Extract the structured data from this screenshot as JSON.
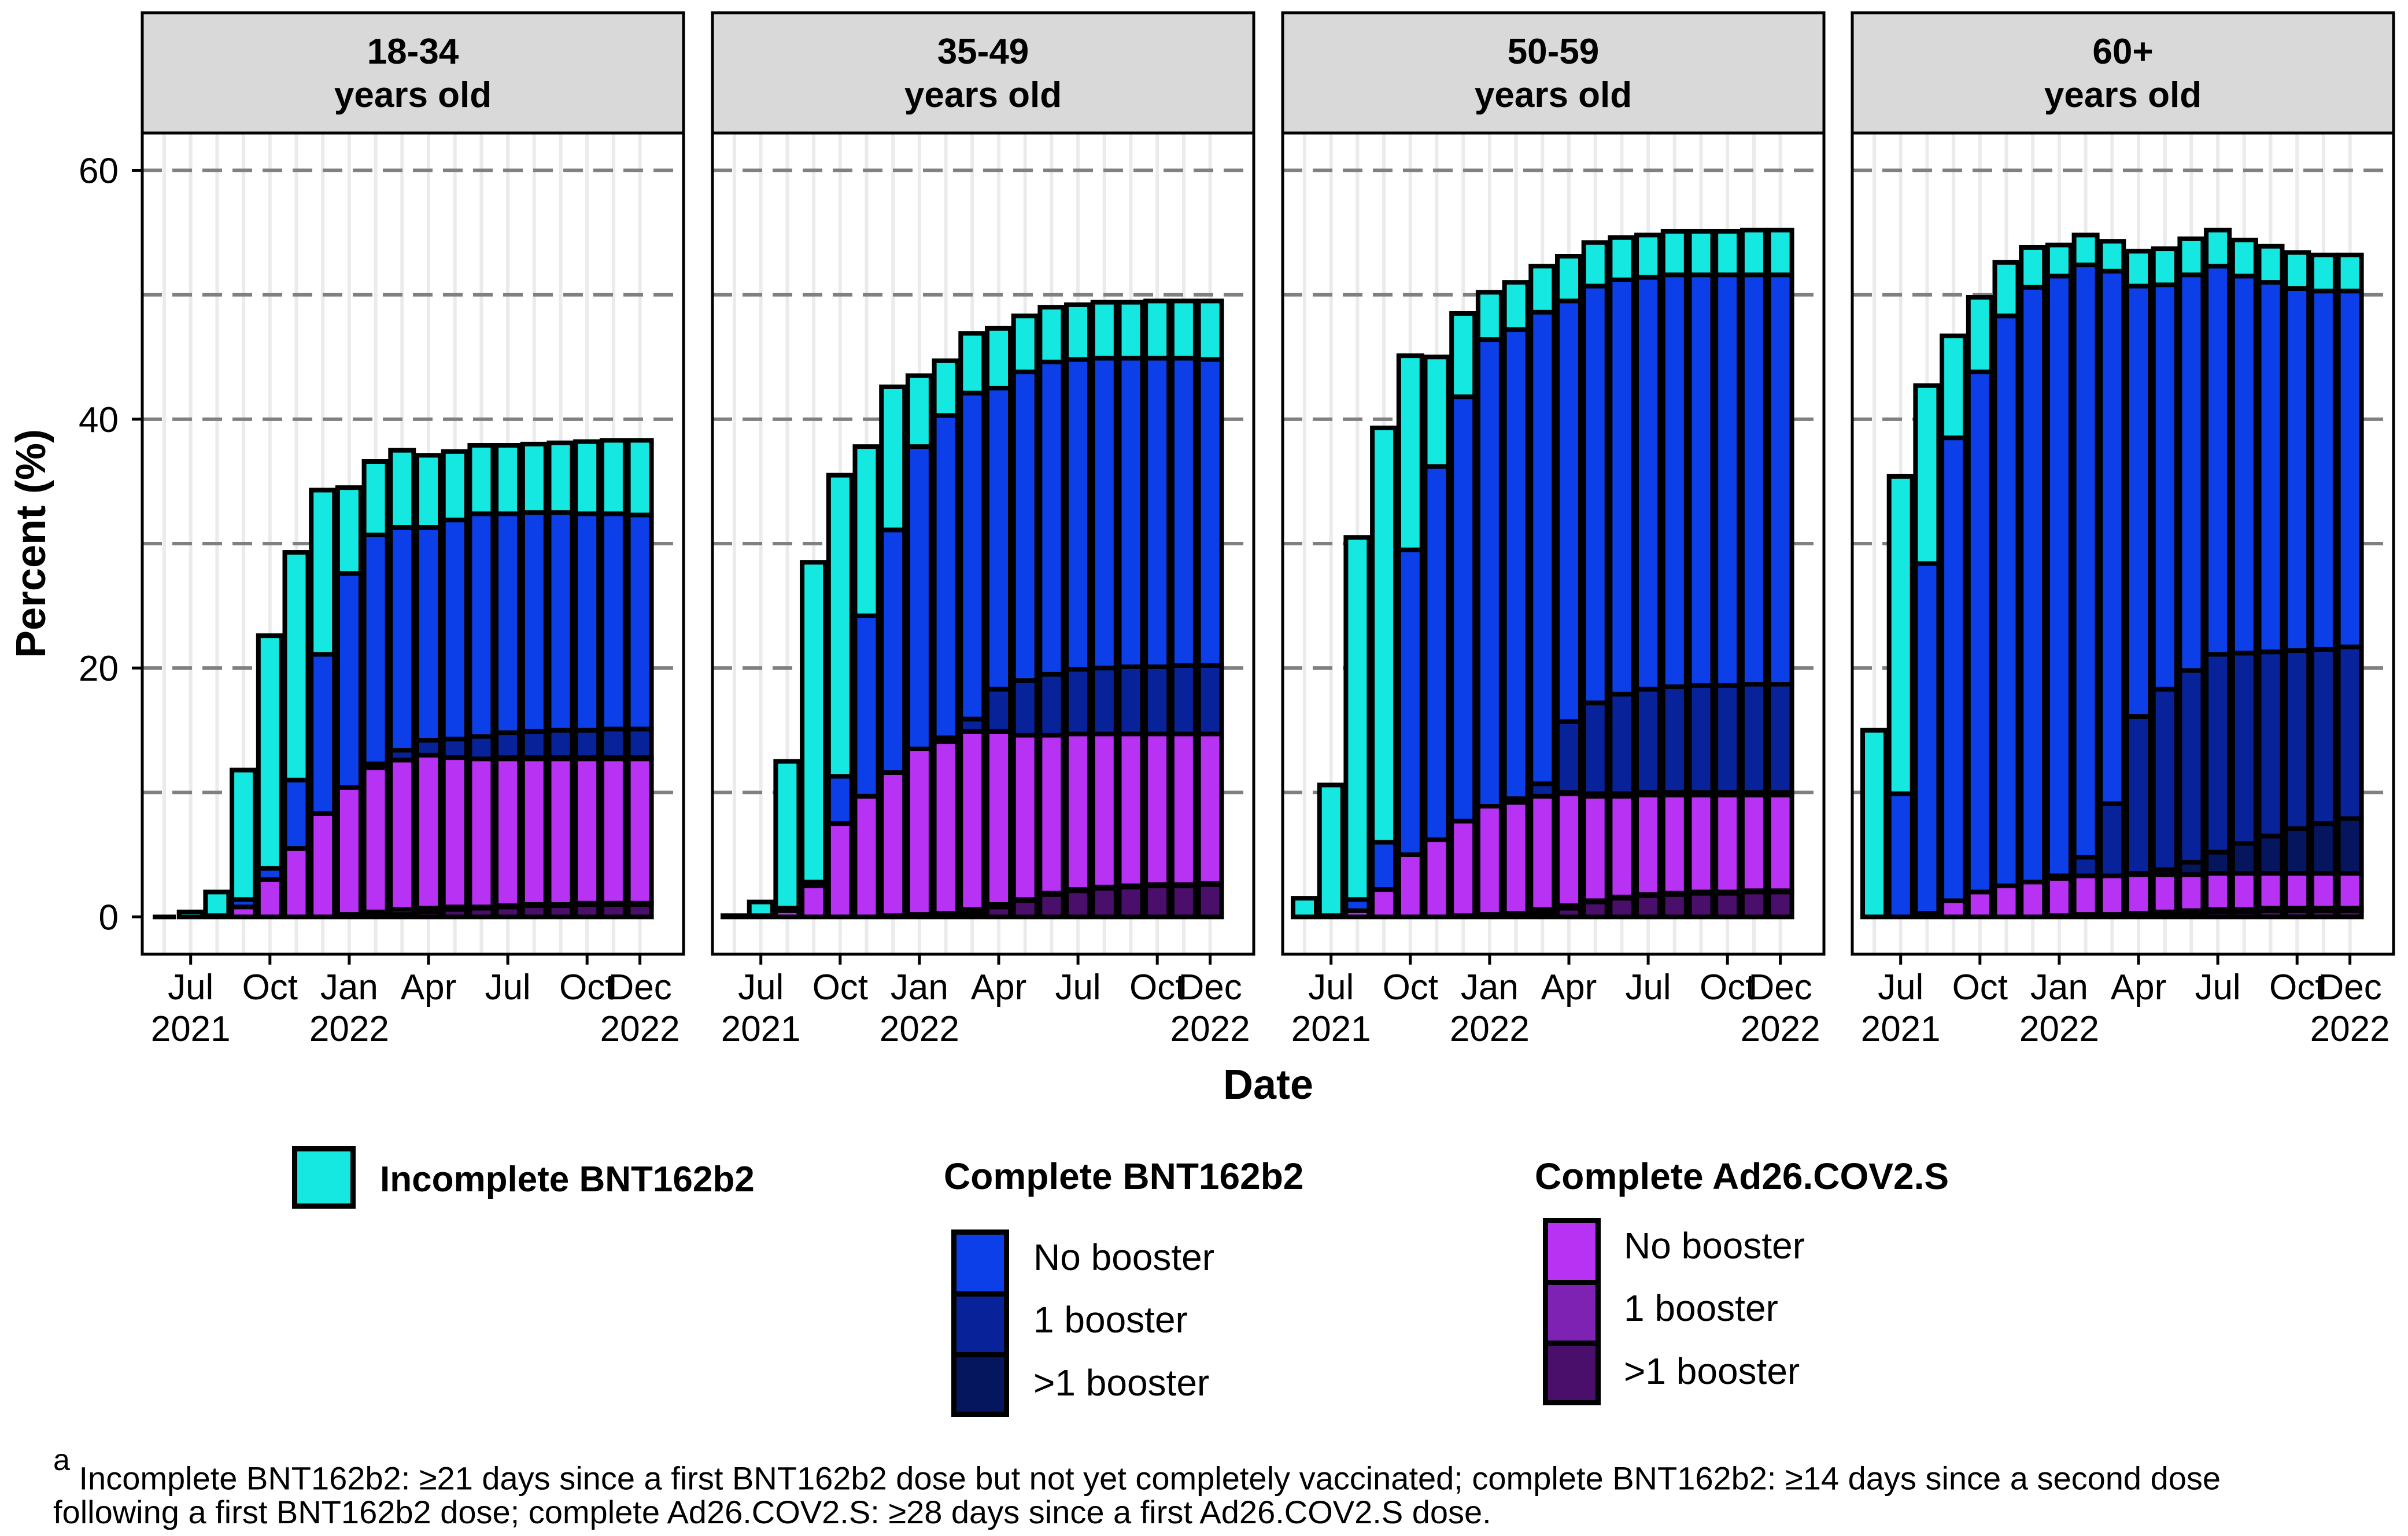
{
  "chart_data": {
    "type": "bar",
    "stacked": true,
    "facet_by": "age group",
    "panels": [
      {
        "line1": "18-34",
        "line2": "years old"
      },
      {
        "line1": "35-49",
        "line2": "years old"
      },
      {
        "line1": "50-59",
        "line2": "years old"
      },
      {
        "line1": "60+",
        "line2": "years old"
      }
    ],
    "ylabel": "Percent (%)",
    "xlabel": "Date",
    "ylim": [
      -3,
      63
    ],
    "yticks": [
      0,
      20,
      40,
      60
    ],
    "gridlines": [
      10,
      20,
      30,
      40,
      50,
      60
    ],
    "months": [
      "2021-06",
      "2021-07",
      "2021-08",
      "2021-09",
      "2021-10",
      "2021-11",
      "2021-12",
      "2022-01",
      "2022-02",
      "2022-03",
      "2022-04",
      "2022-05",
      "2022-06",
      "2022-07",
      "2022-08",
      "2022-09",
      "2022-10",
      "2022-11",
      "2022-12"
    ],
    "xticks": [
      {
        "idx": 1,
        "line1": "Jul",
        "line2": "2021"
      },
      {
        "idx": 4,
        "line1": "Oct",
        "line2": ""
      },
      {
        "idx": 7,
        "line1": "Jan",
        "line2": "2022"
      },
      {
        "idx": 10,
        "line1": "Apr",
        "line2": ""
      },
      {
        "idx": 13,
        "line1": "Jul",
        "line2": ""
      },
      {
        "idx": 16,
        "line1": "Oct",
        "line2": ""
      },
      {
        "idx": 18,
        "line1": "Dec",
        "line2": "2022"
      }
    ],
    "series": [
      {
        "name": "Complete Ad26.COV2.S >1 booster",
        "values": [
          [
            0,
            0,
            0,
            0,
            0,
            0,
            0,
            0,
            0.1,
            0.2,
            0.4,
            0.6,
            0.7,
            0.8,
            0.9,
            0.9,
            1.0,
            1.0,
            1.0
          ],
          [
            0,
            0,
            0,
            0,
            0,
            0,
            0,
            0,
            0,
            0.3,
            0.8,
            1.3,
            1.8,
            2.1,
            2.3,
            2.4,
            2.5,
            2.5,
            2.6
          ],
          [
            0,
            0,
            0,
            0,
            0,
            0,
            0,
            0,
            0,
            0.3,
            0.7,
            1.2,
            1.5,
            1.7,
            1.8,
            1.9,
            1.9,
            2.0,
            2.0
          ],
          [
            0,
            0,
            0,
            0,
            0,
            0,
            0,
            0,
            0,
            0,
            0.1,
            0.2,
            0.3,
            0.4,
            0.4,
            0.5,
            0.5,
            0.5,
            0.5
          ]
        ]
      },
      {
        "name": "Complete Ad26.COV2.S 1 booster",
        "values": [
          [
            0,
            0,
            0,
            0,
            0,
            0,
            0,
            0.2,
            0.3,
            0.4,
            0.3,
            0.2,
            0.1,
            0.1,
            0.1,
            0.1,
            0.1,
            0.1,
            0.1
          ],
          [
            0,
            0,
            0,
            0,
            0,
            0,
            0.1,
            0.2,
            0.3,
            0.3,
            0.2,
            0.1,
            0.1,
            0.1,
            0.1,
            0.1,
            0.1,
            0.1,
            0.1
          ],
          [
            0,
            0,
            0,
            0,
            0,
            0,
            0.1,
            0.2,
            0.3,
            0.3,
            0.2,
            0.1,
            0.1,
            0.1,
            0.1,
            0.1,
            0.1,
            0.1,
            0.1
          ],
          [
            0,
            0,
            0,
            0,
            0,
            0,
            0,
            0.1,
            0.2,
            0.2,
            0.2,
            0.2,
            0.2,
            0.2,
            0.2,
            0.2,
            0.2,
            0.2,
            0.2
          ]
        ]
      },
      {
        "name": "Complete Ad26.COV2.S No booster",
        "values": [
          [
            0,
            0,
            0.1,
            0.8,
            3.0,
            5.5,
            8.3,
            10.2,
            11.6,
            12.0,
            12.3,
            12.0,
            11.9,
            11.8,
            11.7,
            11.7,
            11.6,
            11.6,
            11.6
          ],
          [
            0,
            0.1,
            0.5,
            2.5,
            7.5,
            9.7,
            11.5,
            13.3,
            13.8,
            14.3,
            13.9,
            13.2,
            12.7,
            12.5,
            12.3,
            12.2,
            12.1,
            12.1,
            12.0
          ],
          [
            0,
            0.1,
            0.5,
            2.2,
            5.0,
            6.2,
            7.6,
            8.7,
            8.9,
            9.1,
            9.0,
            8.4,
            8.1,
            8.0,
            7.9,
            7.8,
            7.8,
            7.7,
            7.7
          ],
          [
            0,
            0,
            0.3,
            1.3,
            2.0,
            2.5,
            2.8,
            3.0,
            3.1,
            3.1,
            3.1,
            3.0,
            2.9,
            2.9,
            2.9,
            2.8,
            2.8,
            2.8,
            2.8
          ]
        ]
      },
      {
        "name": "Complete BNT162b2 >1 booster",
        "values": [
          [
            0,
            0,
            0,
            0,
            0,
            0,
            0,
            0,
            0,
            0,
            0,
            0,
            0,
            0.1,
            0.1,
            0.1,
            0.1,
            0.1,
            0.1
          ],
          [
            0,
            0,
            0,
            0,
            0,
            0,
            0,
            0,
            0,
            0,
            0,
            0,
            0,
            0,
            0,
            0,
            0,
            0,
            0
          ],
          [
            0,
            0,
            0,
            0,
            0,
            0,
            0,
            0,
            0,
            0,
            0.1,
            0.2,
            0.2,
            0.2,
            0.2,
            0.2,
            0.2,
            0.2,
            0.2
          ],
          [
            0,
            0,
            0,
            0,
            0,
            0,
            0,
            0,
            0,
            0,
            0.1,
            0.4,
            1.0,
            1.7,
            2.4,
            3.0,
            3.6,
            4.0,
            4.4
          ]
        ]
      },
      {
        "name": "Complete BNT162b2 1 booster",
        "values": [
          [
            0,
            0,
            0,
            0,
            0,
            0,
            0,
            0,
            0.3,
            0.8,
            1.2,
            1.5,
            1.8,
            2.0,
            2.1,
            2.2,
            2.2,
            2.3,
            2.3
          ],
          [
            0,
            0,
            0,
            0,
            0,
            0,
            0,
            0,
            0.3,
            1.0,
            3.4,
            4.4,
            4.9,
            5.2,
            5.3,
            5.4,
            5.4,
            5.5,
            5.5
          ],
          [
            0,
            0,
            0,
            0,
            0,
            0,
            0,
            0,
            0.3,
            1.0,
            5.7,
            7.3,
            8.0,
            8.3,
            8.5,
            8.6,
            8.6,
            8.7,
            8.7
          ],
          [
            0,
            0,
            0,
            0,
            0,
            0,
            0,
            0.2,
            1.5,
            5.8,
            12.6,
            14.5,
            15.4,
            15.9,
            15.3,
            14.8,
            14.3,
            14.0,
            13.8
          ]
        ]
      },
      {
        "name": "Complete BNT162b2 No booster",
        "values": [
          [
            0,
            0,
            0,
            0.6,
            0.9,
            5.5,
            12.8,
            17.2,
            18.4,
            17.9,
            17.1,
            17.6,
            17.9,
            17.6,
            17.6,
            17.5,
            17.4,
            17.3,
            17.2
          ],
          [
            0,
            0,
            0.2,
            0.3,
            3.8,
            14.5,
            19.5,
            24.3,
            25.9,
            26.2,
            24.2,
            24.8,
            25.1,
            24.9,
            24.9,
            24.8,
            24.8,
            24.7,
            24.6
          ],
          [
            0,
            0,
            0.9,
            3.8,
            24.5,
            30.0,
            34.1,
            37.5,
            37.7,
            37.9,
            33.8,
            33.5,
            33.3,
            33.1,
            33.1,
            33.0,
            33.0,
            32.9,
            32.9
          ],
          [
            0,
            9.9,
            28.1,
            37.2,
            41.8,
            45.8,
            47.8,
            48.2,
            47.6,
            42.8,
            34.6,
            32.5,
            31.8,
            31.2,
            30.3,
            29.7,
            29.1,
            28.8,
            28.6
          ]
        ]
      },
      {
        "name": "Incomplete BNT162b2",
        "values": [
          [
            0,
            0.4,
            1.9,
            10.4,
            18.7,
            18.3,
            13.2,
            6.9,
            5.9,
            6.2,
            5.8,
            5.5,
            5.5,
            5.5,
            5.5,
            5.6,
            5.8,
            5.9,
            6.0
          ],
          [
            0.1,
            1.1,
            11.8,
            25.7,
            24.2,
            13.6,
            11.5,
            5.7,
            4.4,
            4.8,
            4.8,
            4.5,
            4.4,
            4.4,
            4.5,
            4.5,
            4.6,
            4.6,
            4.7
          ],
          [
            1.5,
            10.5,
            29.1,
            33.3,
            15.6,
            8.8,
            6.7,
            3.8,
            3.8,
            3.7,
            3.6,
            3.5,
            3.4,
            3.4,
            3.5,
            3.5,
            3.5,
            3.6,
            3.6
          ],
          [
            15.0,
            25.5,
            14.3,
            8.2,
            6.0,
            4.3,
            3.2,
            2.5,
            2.4,
            2.4,
            2.8,
            2.9,
            2.9,
            2.9,
            2.9,
            2.9,
            2.9,
            2.9,
            2.9
          ]
        ]
      }
    ],
    "colors": {
      "Incomplete BNT162b2": "#15e8e0",
      "Complete BNT162b2 No booster": "#0c3fe8",
      "Complete BNT162b2 1 booster": "#08239a",
      "Complete BNT162b2 >1 booster": "#05155e",
      "Complete Ad26.COV2.S No booster": "#b732f2",
      "Complete Ad26.COV2.S 1 booster": "#7d22b2",
      "Complete Ad26.COV2.S >1 booster": "#4a0f6a",
      "strip_fill": "#d9d9d9",
      "gridline": "#808080",
      "minor_gridline": "#ebebeb"
    }
  },
  "legend": {
    "incomplete": {
      "label": "Incomplete BNT162b2"
    },
    "bnt": {
      "title": "Complete BNT162b2",
      "items": [
        {
          "label": "No booster"
        },
        {
          "label": "1 booster"
        },
        {
          "label": ">1 booster"
        }
      ]
    },
    "ad26": {
      "title": "Complete Ad26.COV2.S",
      "items": [
        {
          "label": "No booster"
        },
        {
          "label": "1 booster"
        },
        {
          "label": ">1 booster"
        }
      ]
    }
  },
  "footnote": {
    "marker": "a",
    "line1": "Incomplete BNT162b2: ≥21 days since a first BNT162b2 dose but not yet completely vaccinated; complete BNT162b2: ≥14 days since a second dose",
    "line2": "following a first BNT162b2 dose; complete Ad26.COV2.S: ≥28 days since a first Ad26.COV2.S dose."
  }
}
